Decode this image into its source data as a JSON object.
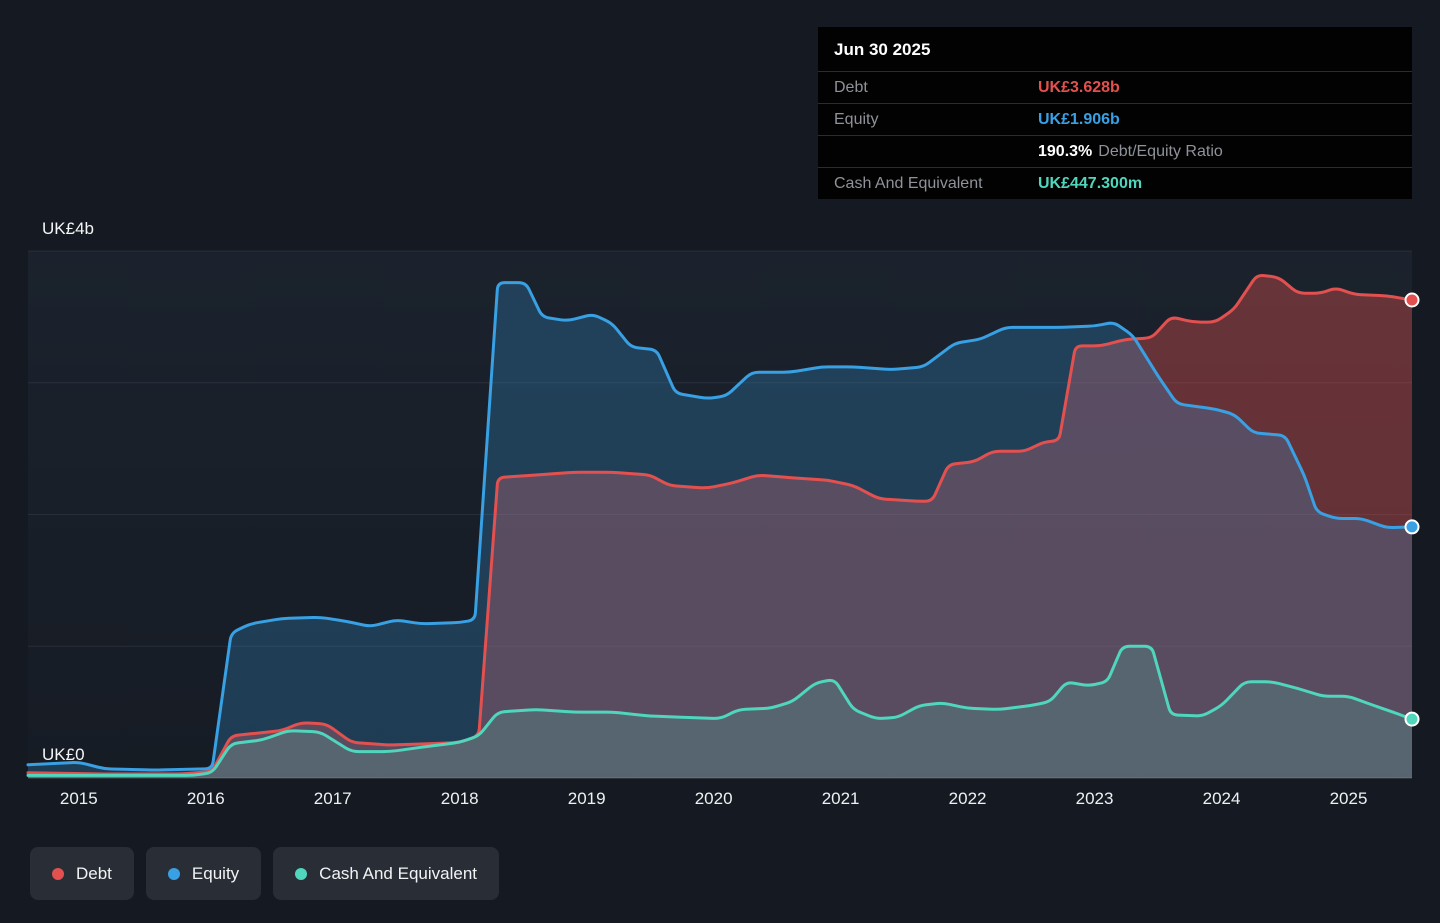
{
  "tooltip": {
    "date": "Jun 30 2025",
    "debt": {
      "label": "Debt",
      "value": "UK£3.628b"
    },
    "equity": {
      "label": "Equity",
      "value": "UK£1.906b"
    },
    "ratio": {
      "value": "190.3%",
      "label": "Debt/Equity Ratio"
    },
    "cash": {
      "label": "Cash And Equivalent",
      "value": "UK£447.300m"
    }
  },
  "chart_data": {
    "type": "area",
    "xlim": [
      2014.6,
      2025.5
    ],
    "ylim": [
      0,
      4
    ],
    "grid_values": [
      0,
      1,
      2,
      3,
      4
    ],
    "y_axis_labels": {
      "top": "UK£4b",
      "bottom": "UK£0"
    },
    "x_ticks": [
      {
        "label": "2015",
        "year": 2015
      },
      {
        "label": "2016",
        "year": 2016
      },
      {
        "label": "2017",
        "year": 2017
      },
      {
        "label": "2018",
        "year": 2018
      },
      {
        "label": "2019",
        "year": 2019
      },
      {
        "label": "2020",
        "year": 2020
      },
      {
        "label": "2021",
        "year": 2021
      },
      {
        "label": "2022",
        "year": 2022
      },
      {
        "label": "2023",
        "year": 2023
      },
      {
        "label": "2024",
        "year": 2024
      },
      {
        "label": "2025",
        "year": 2025
      }
    ],
    "series": [
      {
        "id": "debt",
        "name": "Debt",
        "color": "#e2514f",
        "fill_opacity": 0.38,
        "points": [
          [
            2014.6,
            0.04
          ],
          [
            2015.2,
            0.03
          ],
          [
            2015.8,
            0.03
          ],
          [
            2016.05,
            0.05
          ],
          [
            2016.2,
            0.32
          ],
          [
            2016.4,
            0.34
          ],
          [
            2016.6,
            0.36
          ],
          [
            2016.75,
            0.42
          ],
          [
            2016.95,
            0.41
          ],
          [
            2017.15,
            0.27
          ],
          [
            2017.45,
            0.25
          ],
          [
            2017.75,
            0.26
          ],
          [
            2018.0,
            0.27
          ],
          [
            2018.15,
            0.32
          ],
          [
            2018.3,
            2.28
          ],
          [
            2018.6,
            2.3
          ],
          [
            2018.9,
            2.32
          ],
          [
            2019.2,
            2.32
          ],
          [
            2019.5,
            2.3
          ],
          [
            2019.65,
            2.22
          ],
          [
            2019.95,
            2.2
          ],
          [
            2020.15,
            2.24
          ],
          [
            2020.35,
            2.3
          ],
          [
            2020.6,
            2.28
          ],
          [
            2020.9,
            2.26
          ],
          [
            2021.1,
            2.22
          ],
          [
            2021.3,
            2.12
          ],
          [
            2021.6,
            2.1
          ],
          [
            2021.72,
            2.1
          ],
          [
            2021.85,
            2.38
          ],
          [
            2022.05,
            2.4
          ],
          [
            2022.2,
            2.48
          ],
          [
            2022.45,
            2.48
          ],
          [
            2022.6,
            2.55
          ],
          [
            2022.72,
            2.56
          ],
          [
            2022.85,
            3.28
          ],
          [
            2023.05,
            3.28
          ],
          [
            2023.25,
            3.33
          ],
          [
            2023.45,
            3.34
          ],
          [
            2023.6,
            3.5
          ],
          [
            2023.78,
            3.46
          ],
          [
            2023.95,
            3.46
          ],
          [
            2024.1,
            3.56
          ],
          [
            2024.28,
            3.82
          ],
          [
            2024.45,
            3.8
          ],
          [
            2024.6,
            3.68
          ],
          [
            2024.78,
            3.68
          ],
          [
            2024.9,
            3.72
          ],
          [
            2025.05,
            3.67
          ],
          [
            2025.3,
            3.66
          ],
          [
            2025.5,
            3.628
          ]
        ]
      },
      {
        "id": "equity",
        "name": "Equity",
        "color": "#38a0e3",
        "fill_opacity": 0.25,
        "points": [
          [
            2014.6,
            0.1
          ],
          [
            2015.0,
            0.12
          ],
          [
            2015.2,
            0.07
          ],
          [
            2015.6,
            0.06
          ],
          [
            2016.05,
            0.07
          ],
          [
            2016.2,
            1.1
          ],
          [
            2016.35,
            1.17
          ],
          [
            2016.6,
            1.21
          ],
          [
            2016.9,
            1.22
          ],
          [
            2017.1,
            1.19
          ],
          [
            2017.3,
            1.15
          ],
          [
            2017.5,
            1.2
          ],
          [
            2017.7,
            1.17
          ],
          [
            2018.0,
            1.18
          ],
          [
            2018.12,
            1.2
          ],
          [
            2018.3,
            3.76
          ],
          [
            2018.52,
            3.76
          ],
          [
            2018.65,
            3.5
          ],
          [
            2018.85,
            3.47
          ],
          [
            2019.05,
            3.52
          ],
          [
            2019.2,
            3.45
          ],
          [
            2019.35,
            3.27
          ],
          [
            2019.55,
            3.25
          ],
          [
            2019.7,
            2.92
          ],
          [
            2019.95,
            2.88
          ],
          [
            2020.1,
            2.9
          ],
          [
            2020.3,
            3.08
          ],
          [
            2020.6,
            3.08
          ],
          [
            2020.85,
            3.12
          ],
          [
            2021.1,
            3.12
          ],
          [
            2021.4,
            3.1
          ],
          [
            2021.65,
            3.12
          ],
          [
            2021.9,
            3.3
          ],
          [
            2022.1,
            3.33
          ],
          [
            2022.3,
            3.42
          ],
          [
            2022.7,
            3.42
          ],
          [
            2023.0,
            3.43
          ],
          [
            2023.15,
            3.46
          ],
          [
            2023.3,
            3.36
          ],
          [
            2023.5,
            3.05
          ],
          [
            2023.65,
            2.84
          ],
          [
            2023.95,
            2.8
          ],
          [
            2024.1,
            2.76
          ],
          [
            2024.25,
            2.62
          ],
          [
            2024.5,
            2.6
          ],
          [
            2024.65,
            2.3
          ],
          [
            2024.75,
            2.02
          ],
          [
            2024.9,
            1.97
          ],
          [
            2025.1,
            1.97
          ],
          [
            2025.3,
            1.9
          ],
          [
            2025.5,
            1.906
          ]
        ]
      },
      {
        "id": "cash",
        "name": "Cash And Equivalent",
        "color": "#4fd6bd",
        "fill_opacity": 0.18,
        "points": [
          [
            2014.6,
            0.02
          ],
          [
            2015.4,
            0.02
          ],
          [
            2015.9,
            0.02
          ],
          [
            2016.05,
            0.04
          ],
          [
            2016.2,
            0.26
          ],
          [
            2016.45,
            0.29
          ],
          [
            2016.65,
            0.36
          ],
          [
            2016.9,
            0.35
          ],
          [
            2017.15,
            0.2
          ],
          [
            2017.45,
            0.2
          ],
          [
            2017.75,
            0.24
          ],
          [
            2018.0,
            0.27
          ],
          [
            2018.15,
            0.32
          ],
          [
            2018.3,
            0.5
          ],
          [
            2018.6,
            0.52
          ],
          [
            2018.9,
            0.5
          ],
          [
            2019.2,
            0.5
          ],
          [
            2019.5,
            0.47
          ],
          [
            2019.8,
            0.46
          ],
          [
            2020.05,
            0.45
          ],
          [
            2020.2,
            0.52
          ],
          [
            2020.45,
            0.53
          ],
          [
            2020.62,
            0.58
          ],
          [
            2020.8,
            0.72
          ],
          [
            2020.95,
            0.75
          ],
          [
            2021.1,
            0.52
          ],
          [
            2021.28,
            0.45
          ],
          [
            2021.45,
            0.46
          ],
          [
            2021.62,
            0.55
          ],
          [
            2021.8,
            0.57
          ],
          [
            2022.0,
            0.53
          ],
          [
            2022.25,
            0.52
          ],
          [
            2022.5,
            0.55
          ],
          [
            2022.65,
            0.58
          ],
          [
            2022.78,
            0.73
          ],
          [
            2022.95,
            0.7
          ],
          [
            2023.1,
            0.73
          ],
          [
            2023.22,
            1.0
          ],
          [
            2023.45,
            1.0
          ],
          [
            2023.6,
            0.48
          ],
          [
            2023.85,
            0.47
          ],
          [
            2024.0,
            0.55
          ],
          [
            2024.18,
            0.73
          ],
          [
            2024.4,
            0.73
          ],
          [
            2024.6,
            0.68
          ],
          [
            2024.8,
            0.62
          ],
          [
            2025.0,
            0.62
          ],
          [
            2025.2,
            0.55
          ],
          [
            2025.35,
            0.5
          ],
          [
            2025.5,
            0.447
          ]
        ]
      }
    ]
  }
}
